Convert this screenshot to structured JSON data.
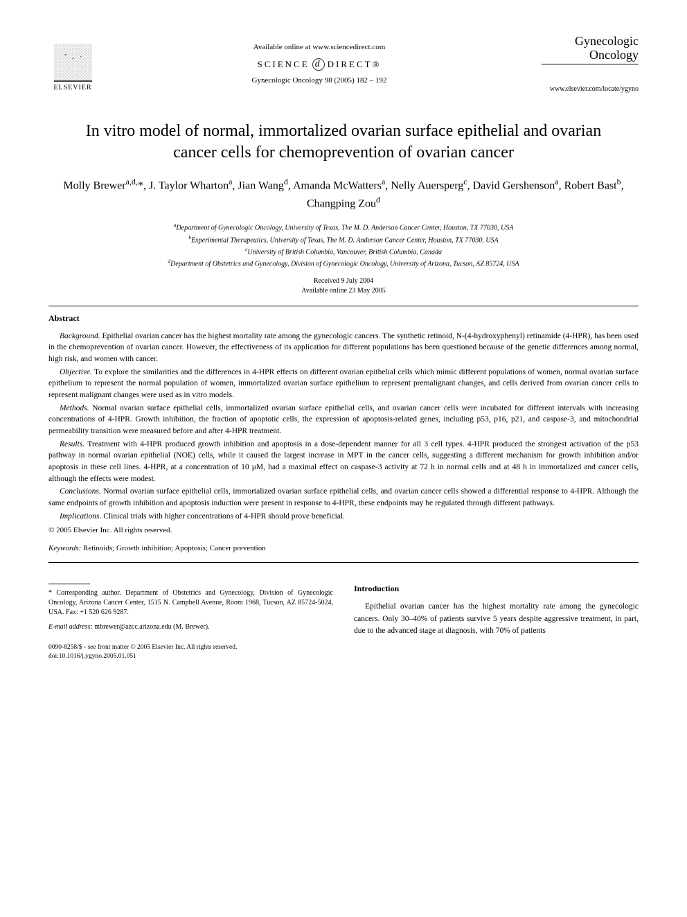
{
  "header": {
    "publisher_label": "ELSEVIER",
    "available_online": "Available online at www.sciencedirect.com",
    "sciencedirect_left": "SCIENCE",
    "sciencedirect_right": "DIRECT®",
    "citation": "Gynecologic Oncology 98 (2005) 182 – 192",
    "journal_name_line1": "Gynecologic",
    "journal_name_line2": "Oncology",
    "journal_url": "www.elsevier.com/locate/ygyno"
  },
  "title": "In vitro model of normal, immortalized ovarian surface epithelial and ovarian cancer cells for chemoprevention of ovarian cancer",
  "authors_html": "Molly Brewer<sup>a,d,</sup>*, J. Taylor Wharton<sup>a</sup>, Jian Wang<sup>d</sup>, Amanda McWatters<sup>a</sup>, Nelly Auersperg<sup>c</sup>, David Gershenson<sup>a</sup>, Robert Bast<sup>b</sup>, Changping Zou<sup>d</sup>",
  "affiliations": {
    "a": "Department of Gynecologic Oncology, University of Texas, The M. D. Anderson Cancer Center, Houston, TX 77030, USA",
    "b": "Experimental Therapeutics, University of Texas, The M. D. Anderson Cancer Center, Houston, TX 77030, USA",
    "c": "University of British Columbia, Vancouver, British Columbia, Canada",
    "d": "Department of Obstetrics and Gynecology, Division of Gynecologic Oncology, University of Arizona, Tucson, AZ 85724, USA"
  },
  "dates": {
    "received": "Received 9 July 2004",
    "online": "Available online 23 May 2005"
  },
  "abstract": {
    "label": "Abstract",
    "background": {
      "lead": "Background.",
      "text": " Epithelial ovarian cancer has the highest mortality rate among the gynecologic cancers. The synthetic retinoid, N-(4-hydroxyphenyl) retinamide (4-HPR), has been used in the chemoprevention of ovarian cancer. However, the effectiveness of its application for different populations has been questioned because of the genetic differences among normal, high risk, and women with cancer."
    },
    "objective": {
      "lead": "Objective.",
      "text": " To explore the similarities and the differences in 4-HPR effects on different ovarian epithelial cells which mimic different populations of women, normal ovarian surface epithelium to represent the normal population of women, immortalized ovarian surface epithelium to represent premalignant changes, and cells derived from ovarian cancer cells to represent malignant changes were used as in vitro models."
    },
    "methods": {
      "lead": "Methods.",
      "text": " Normal ovarian surface epithelial cells, immortalized ovarian surface epithelial cells, and ovarian cancer cells were incubated for different intervals with increasing concentrations of 4-HPR. Growth inhibition, the fraction of apoptotic cells, the expression of apoptosis-related genes, including p53, p16, p21, and caspase-3, and mitochondrial permeability transition were measured before and after 4-HPR treatment."
    },
    "results": {
      "lead": "Results.",
      "text": " Treatment with 4-HPR produced growth inhibition and apoptosis in a dose-dependent manner for all 3 cell types. 4-HPR produced the strongest activation of the p53 pathway in normal ovarian epithelial (NOE) cells, while it caused the largest increase in MPT in the cancer cells, suggesting a different mechanism for growth inhibition and/or apoptosis in these cell lines. 4-HPR, at a concentration of 10 μM, had a maximal effect on caspase-3 activity at 72 h in normal cells and at 48 h in immortalized and cancer cells, although the effects were modest."
    },
    "conclusions": {
      "lead": "Conclusions.",
      "text": " Normal ovarian surface epithelial cells, immortalized ovarian surface epithelial cells, and ovarian cancer cells showed a differential response to 4-HPR. Although the same endpoints of growth inhibition and apoptosis induction were present in response to 4-HPR, these endpoints may be regulated through different pathways."
    },
    "implications": {
      "lead": "Implications.",
      "text": " Clinical trials with higher concentrations of 4-HPR should prove beneficial."
    },
    "copyright": "© 2005 Elsevier Inc. All rights reserved."
  },
  "keywords": {
    "label": "Keywords:",
    "text": " Retinoids; Growth inhibition; Apoptosis; Cancer prevention"
  },
  "footnote": {
    "corresponding": "* Corresponding author. Department of Obstetrics and Gynecology, Division of Gynecologic Oncology, Arizona Cancer Center, 1515 N. Campbell Avenue, Room 1968, Tucson, AZ 85724-5024, USA. Fax: +1 520 626 9287.",
    "email_label": "E-mail address:",
    "email_value": " mbrewer@azcc.arizona.edu (M. Brewer)."
  },
  "introduction": {
    "heading": "Introduction",
    "text": "Epithelial ovarian cancer has the highest mortality rate among the gynecologic cancers. Only 30–40% of patients survive 5 years despite aggressive treatment, in part, due to the advanced stage at diagnosis, with 70% of patients"
  },
  "frontmatter": {
    "line1": "0090-8258/$ - see front matter © 2005 Elsevier Inc. All rights reserved.",
    "line2": "doi:10.1016/j.ygyno.2005.01.051"
  }
}
